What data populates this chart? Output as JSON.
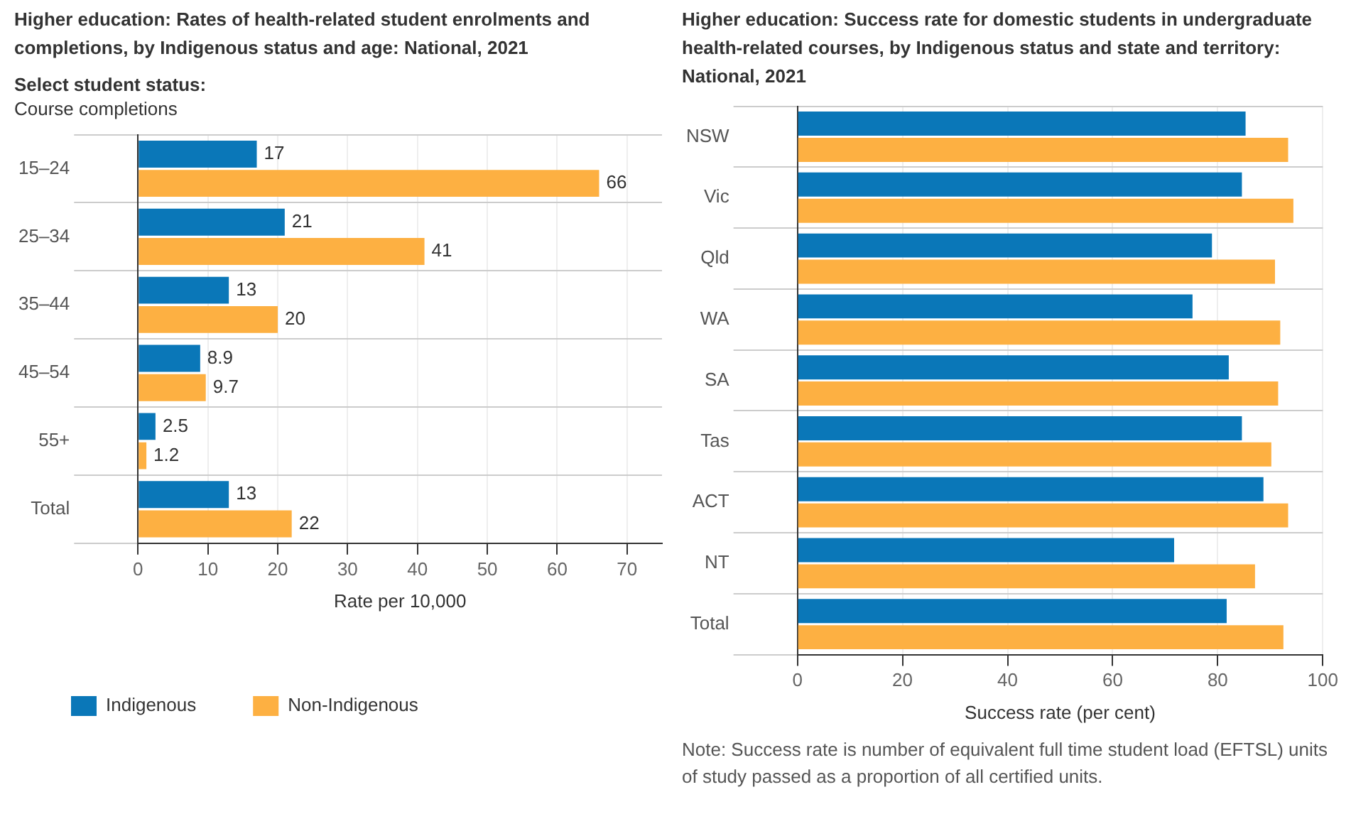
{
  "chart_data": [
    {
      "type": "bar",
      "orientation": "horizontal",
      "title": "Higher education: Rates of health-related student enrolments and completions, by Indigenous status and age: National, 2021",
      "subtitle": "Select student status:",
      "annotations": [
        "Course completions"
      ],
      "xlabel": "Rate per 10,000",
      "categories": [
        "15–24",
        "25–34",
        "35–44",
        "45–54",
        "55+",
        "Total"
      ],
      "series": [
        {
          "name": "Indigenous",
          "color": "#0a77b8",
          "values": [
            17,
            21,
            13,
            8.9,
            2.5,
            13
          ]
        },
        {
          "name": "Non-Indigenous",
          "color": "#fdb042",
          "values": [
            66,
            41,
            20,
            9.7,
            1.2,
            22
          ]
        }
      ],
      "xlim": [
        0,
        75
      ],
      "xticks": [
        0,
        10,
        20,
        30,
        40,
        50,
        60,
        70
      ],
      "grid": true,
      "data_labels": true,
      "legend": "bottom"
    },
    {
      "type": "bar",
      "orientation": "horizontal",
      "title": "Higher education: Success rate for domestic students in undergraduate health-related courses, by Indigenous status and state and territory: National, 2021",
      "xlabel": "Success rate (per cent)",
      "annotations": [
        "Note: Success rate is number of equivalent full time student load (EFTSL) units of study passed as a proportion of all certified units."
      ],
      "categories": [
        "NSW",
        "Vic",
        "Qld",
        "WA",
        "SA",
        "Tas",
        "ACT",
        "NT",
        "Total"
      ],
      "series": [
        {
          "color": "#0a77b8",
          "values": [
            85.3,
            84.6,
            78.9,
            75.2,
            82.1,
            84.6,
            88.7,
            71.7,
            81.7
          ]
        },
        {
          "color": "#fdb042",
          "values": [
            93.4,
            94.4,
            90.9,
            91.9,
            91.5,
            90.2,
            93.4,
            87.1,
            92.5
          ]
        }
      ],
      "xlim": [
        0,
        100
      ],
      "xticks": [
        0,
        20,
        40,
        60,
        80,
        100
      ],
      "grid": true
    }
  ]
}
